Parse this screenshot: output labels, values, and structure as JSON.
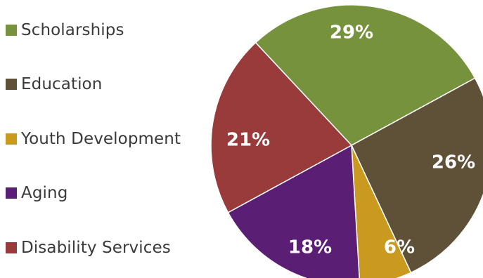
{
  "chart_data": {
    "type": "pie",
    "title": "",
    "legend_position": "left",
    "slices": [
      {
        "label": "Scholarships",
        "value": 29,
        "value_label": "29%",
        "color": "#77923c"
      },
      {
        "label": "Education",
        "value": 26,
        "value_label": "26%",
        "color": "#5f5138"
      },
      {
        "label": "Youth Development",
        "value": 6,
        "value_label": "6%",
        "color": "#c99a1f"
      },
      {
        "label": "Aging",
        "value": 18,
        "value_label": "18%",
        "color": "#5a1e74"
      },
      {
        "label": "Disability Services",
        "value": 21,
        "value_label": "21%",
        "color": "#993a3b"
      }
    ]
  }
}
